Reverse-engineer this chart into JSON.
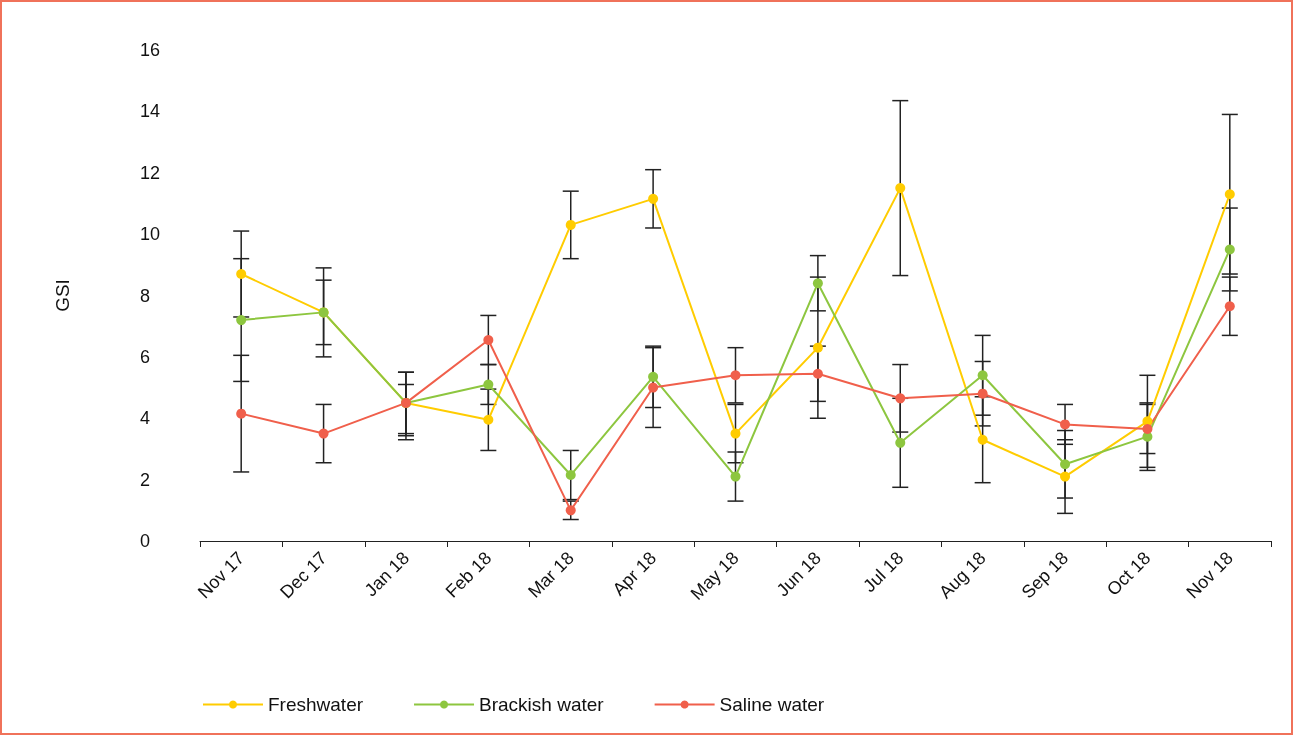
{
  "chart_data": {
    "type": "line",
    "ylabel": "GSI",
    "categories": [
      "Nov 17",
      "Dec 17",
      "Jan 18",
      "Feb 18",
      "Mar 18",
      "Apr 18",
      "May 18",
      "Jun 18",
      "Jul 18",
      "Aug 18",
      "Sep 18",
      "Oct 18",
      "Nov 18"
    ],
    "series": [
      {
        "name": "Freshwater",
        "color": "#ffcc00",
        "values": [
          8.7,
          7.45,
          4.5,
          3.95,
          10.3,
          11.15,
          3.5,
          6.3,
          11.5,
          3.3,
          2.1,
          3.9,
          11.3
        ],
        "errors": [
          1.4,
          1.45,
          [
            3.3,
            5.5
          ],
          1.0,
          1.1,
          0.95,
          0.95,
          2.3,
          2.85,
          1.4,
          1.2,
          1.5,
          2.6
        ]
      },
      {
        "name": "Brackish water",
        "color": "#8dc63f",
        "values": [
          7.2,
          7.45,
          4.5,
          5.1,
          2.15,
          5.35,
          2.1,
          8.4,
          3.2,
          5.4,
          2.5,
          3.4,
          9.5
        ],
        "errors": [
          2.0,
          1.05,
          [
            3.43,
            5.1
          ],
          0.65,
          0.8,
          1.0,
          0.8,
          0.9,
          1.45,
          1.3,
          1.1,
          1.1,
          1.35
        ]
      },
      {
        "name": "Saline water",
        "color": "#f05f4b",
        "values": [
          4.15,
          3.5,
          4.5,
          6.55,
          1.0,
          5.0,
          5.4,
          5.45,
          4.65,
          4.8,
          3.8,
          3.65,
          7.65
        ],
        "errors": [
          1.9,
          0.95,
          1.0,
          0.8,
          0.3,
          1.3,
          0.9,
          0.9,
          1.1,
          1.05,
          0.65,
          0.8,
          0.95
        ]
      }
    ],
    "ylim": [
      0,
      16
    ],
    "yticks": [
      0,
      2,
      4,
      6,
      8,
      10,
      12,
      14,
      16
    ],
    "grid": false,
    "legend": "bottom left",
    "marker": "circle",
    "line_style": "solid"
  }
}
